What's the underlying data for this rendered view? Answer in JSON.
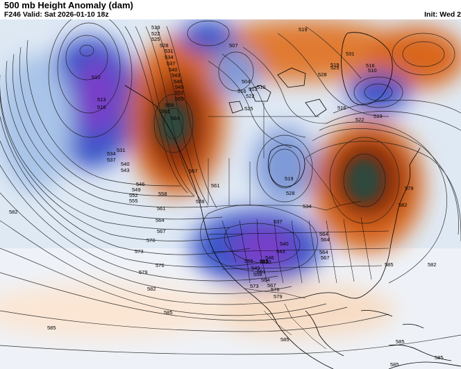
{
  "header": {
    "title": "500 mb Height Anomaly (dam)",
    "subtitle": "F246 Valid: Sat 2026-01-10 18z",
    "init": "Init: Wed 2"
  },
  "colors": {
    "negative_strong": "#7a3cc8",
    "negative": "#3a55c8",
    "negative_weak": "#a9c4e8",
    "positive_weak": "#f5c9a0",
    "positive": "#d9661e",
    "positive_strong": "#8a2a0e",
    "core_dark": "#2e4a3c"
  },
  "contour_labels": [
    {
      "text": "519"
    },
    {
      "text": "522"
    },
    {
      "text": "525"
    },
    {
      "text": "528"
    },
    {
      "text": "531"
    },
    {
      "text": "534"
    },
    {
      "text": "537"
    },
    {
      "text": "540"
    },
    {
      "text": "543"
    },
    {
      "text": "546"
    },
    {
      "text": "549"
    },
    {
      "text": "552"
    },
    {
      "text": "555"
    },
    {
      "text": "558"
    },
    {
      "text": "561"
    },
    {
      "text": "564"
    },
    {
      "text": "567"
    },
    {
      "text": "510"
    },
    {
      "text": "513"
    },
    {
      "text": "516"
    },
    {
      "text": "534"
    },
    {
      "text": "537"
    },
    {
      "text": "540"
    },
    {
      "text": "543"
    },
    {
      "text": "546"
    },
    {
      "text": "549"
    },
    {
      "text": "552"
    },
    {
      "text": "555"
    },
    {
      "text": "531"
    },
    {
      "text": "558"
    },
    {
      "text": "561"
    },
    {
      "text": "564"
    },
    {
      "text": "567"
    },
    {
      "text": "570"
    },
    {
      "text": "573"
    },
    {
      "text": "576"
    },
    {
      "text": "579"
    },
    {
      "text": "582"
    },
    {
      "text": "585"
    },
    {
      "text": "582"
    },
    {
      "text": "585"
    },
    {
      "text": "507"
    },
    {
      "text": "504"
    },
    {
      "text": "516"
    },
    {
      "text": "513"
    },
    {
      "text": "510"
    },
    {
      "text": "522"
    },
    {
      "text": "525"
    },
    {
      "text": "519"
    },
    {
      "text": "528"
    },
    {
      "text": "519"
    },
    {
      "text": "531"
    },
    {
      "text": "525"
    },
    {
      "text": "516"
    },
    {
      "text": "510"
    },
    {
      "text": "516"
    },
    {
      "text": "522"
    },
    {
      "text": "519"
    },
    {
      "text": "537"
    },
    {
      "text": "540"
    },
    {
      "text": "543"
    },
    {
      "text": "546"
    },
    {
      "text": "552"
    },
    {
      "text": "555"
    },
    {
      "text": "549"
    },
    {
      "text": "558"
    },
    {
      "text": "561"
    },
    {
      "text": "564"
    },
    {
      "text": "567"
    },
    {
      "text": "570"
    },
    {
      "text": "573"
    },
    {
      "text": "576"
    },
    {
      "text": "579"
    },
    {
      "text": "579"
    },
    {
      "text": "582"
    },
    {
      "text": "585"
    },
    {
      "text": "585"
    },
    {
      "text": "585"
    },
    {
      "text": "585"
    },
    {
      "text": "564"
    },
    {
      "text": "564"
    },
    {
      "text": "561"
    },
    {
      "text": "558"
    },
    {
      "text": "555"
    },
    {
      "text": "519"
    },
    {
      "text": "528"
    },
    {
      "text": "534"
    },
    {
      "text": "564"
    },
    {
      "text": "567"
    },
    {
      "text": "582"
    },
    {
      "text": "585"
    }
  ]
}
